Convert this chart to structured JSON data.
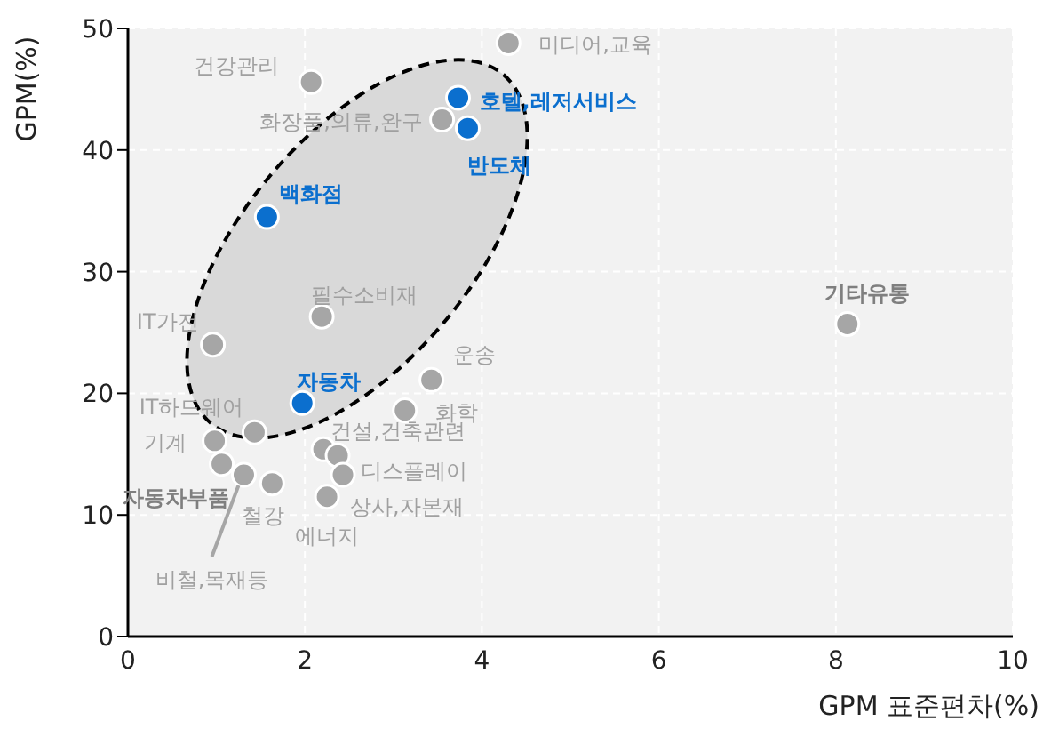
{
  "chart_data": {
    "type": "scatter",
    "xlabel": "GPM 표준편차(%)",
    "ylabel": "GPM(%)",
    "xlim": [
      0,
      10
    ],
    "xticks": [
      0,
      2,
      4,
      6,
      8,
      10
    ],
    "ylim": [
      0,
      50
    ],
    "yticks": [
      0,
      10,
      20,
      30,
      40,
      50
    ],
    "grid": true,
    "marker": "circle",
    "series": [
      {
        "color": "#a6a6a6",
        "x": [
          4.3,
          2.07,
          3.55,
          8.13,
          2.19,
          0.96,
          3.43,
          3.13,
          1.43,
          0.98,
          1.06,
          1.31,
          1.63,
          2.21,
          2.37,
          2.43,
          2.25
        ],
        "values": [
          48.8,
          45.6,
          42.5,
          25.7,
          26.3,
          24.0,
          21.1,
          18.6,
          16.8,
          16.1,
          14.2,
          13.3,
          12.6,
          15.4,
          14.9,
          13.3,
          11.5
        ]
      },
      {
        "color": "#0b6fce",
        "x": [
          3.73,
          3.84,
          1.57,
          1.97
        ],
        "values": [
          44.3,
          41.8,
          34.5,
          19.2
        ]
      }
    ],
    "annotations": [
      {
        "text": "미디어,교육",
        "x": 4.3,
        "y": 48.8
      },
      {
        "text": "건강관리",
        "x": 2.07,
        "y": 45.6
      },
      {
        "text": "호텔,레저서비스",
        "x": 3.73,
        "y": 44.3
      },
      {
        "text": "화장품,의류,완구",
        "x": 3.55,
        "y": 42.5
      },
      {
        "text": "반도체",
        "x": 3.84,
        "y": 41.8
      },
      {
        "text": "백화점",
        "x": 1.57,
        "y": 34.5
      },
      {
        "text": "기타유통",
        "x": 8.13,
        "y": 25.7
      },
      {
        "text": "필수소비재",
        "x": 2.19,
        "y": 26.3
      },
      {
        "text": "IT가전",
        "x": 0.96,
        "y": 24.0
      },
      {
        "text": "운송",
        "x": 3.43,
        "y": 21.1
      },
      {
        "text": "자동차",
        "x": 1.97,
        "y": 19.2
      },
      {
        "text": "화학",
        "x": 3.13,
        "y": 18.6
      },
      {
        "text": "IT하드웨어",
        "x": 1.43,
        "y": 16.8
      },
      {
        "text": "기계",
        "x": 0.98,
        "y": 16.1
      },
      {
        "text": "자동차부품",
        "x": 1.06,
        "y": 14.2
      },
      {
        "text": "비철,목재등",
        "x": 1.31,
        "y": 13.3
      },
      {
        "text": "철강",
        "x": 1.63,
        "y": 12.6
      },
      {
        "text": "건설,건축관련",
        "x": 2.21,
        "y": 15.4
      },
      {
        "text": "디스플레이",
        "x": 2.37,
        "y": 14.9
      },
      {
        "text": "상사,자본재",
        "x": 2.43,
        "y": 13.3
      },
      {
        "text": "에너지",
        "x": 2.25,
        "y": 11.5
      }
    ]
  }
}
